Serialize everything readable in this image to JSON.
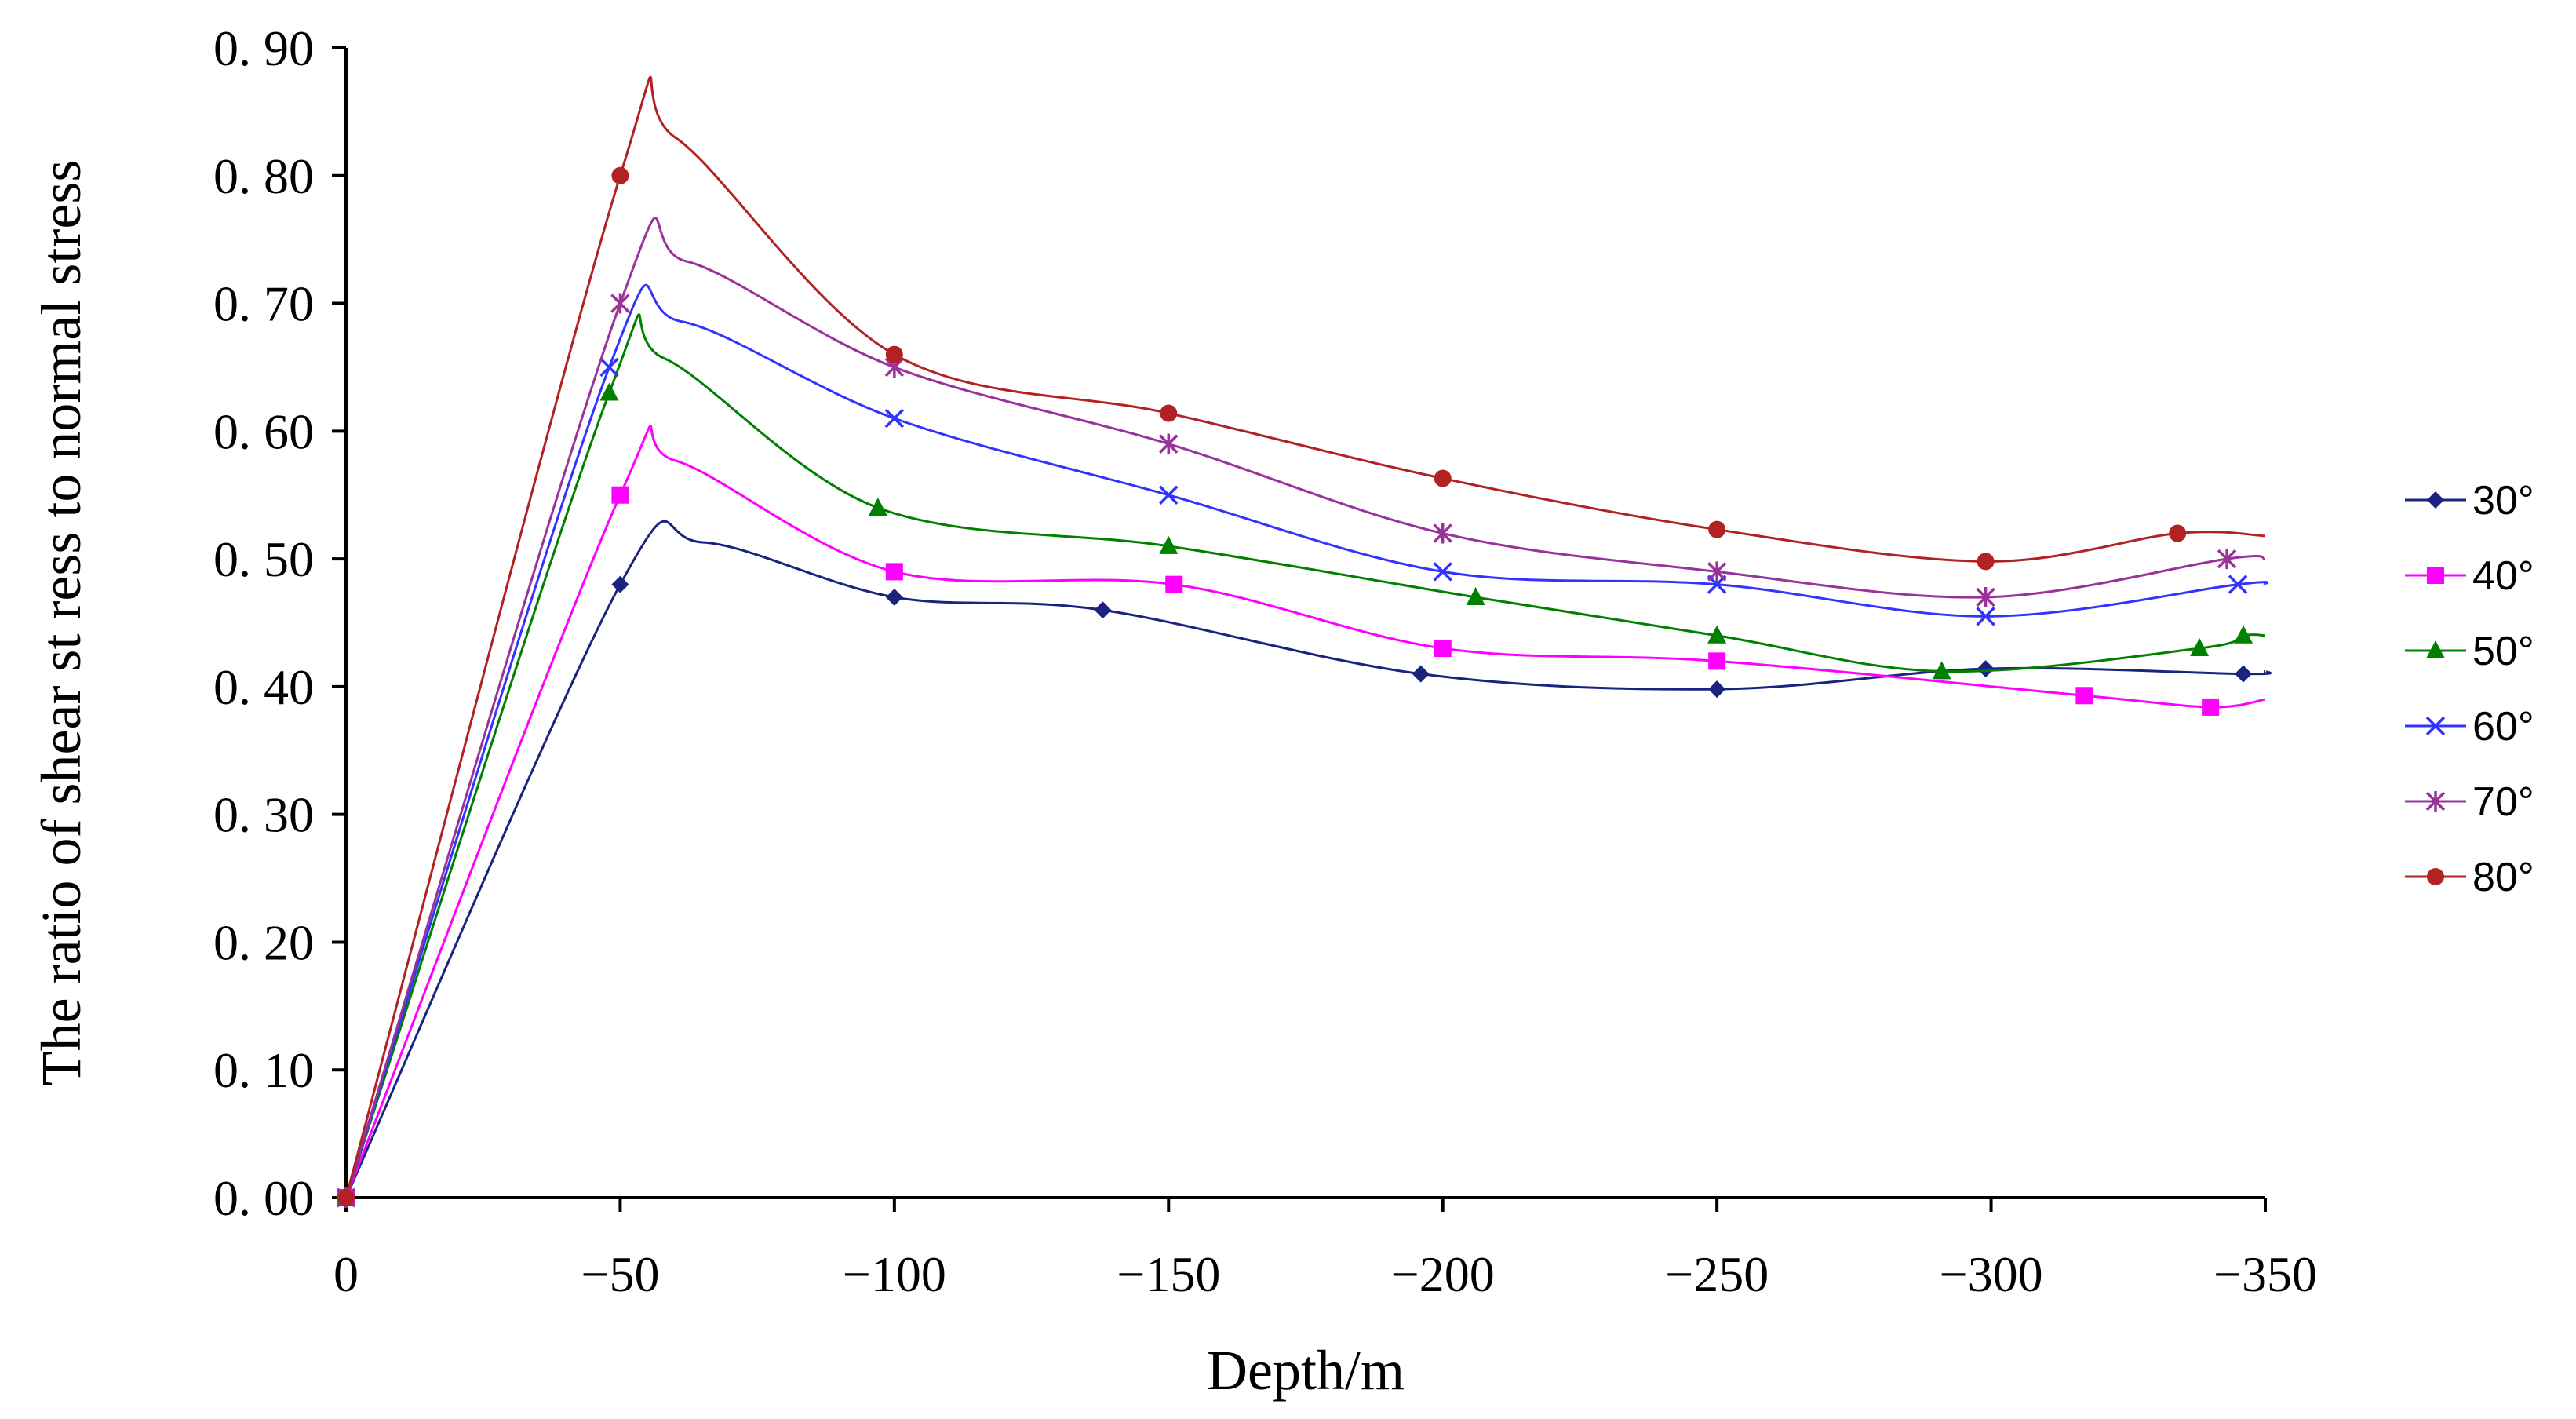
{
  "chart_data": {
    "type": "line",
    "title": "",
    "xlabel": "Depth/m",
    "ylabel": "The ratio of shear st ress to normal stress",
    "xlim": [
      0,
      -350
    ],
    "ylim": [
      0,
      0.9
    ],
    "x_ticks": [
      0,
      -50,
      -100,
      -150,
      -200,
      -250,
      -300,
      -350
    ],
    "x_tick_labels": [
      "0",
      "−50",
      "−100",
      "−150",
      "−200",
      "−250",
      "−300",
      "−350"
    ],
    "y_ticks": [
      0,
      0.1,
      0.2,
      0.3,
      0.4,
      0.5,
      0.6,
      0.7,
      0.8,
      0.9
    ],
    "y_tick_labels": [
      "0. 00",
      "0. 10",
      "0. 20",
      "0. 30",
      "0. 40",
      "0. 50",
      "0. 60",
      "0. 70",
      "0. 80",
      "0. 90"
    ],
    "grid": false,
    "legend_position": "right",
    "series": [
      {
        "name": "30°",
        "color": "#1a237e",
        "marker": "diamond",
        "x": [
          0,
          -50,
          -100,
          -138,
          -196,
          -250,
          -299,
          -346
        ],
        "y": [
          0,
          0.48,
          0.47,
          0.46,
          0.41,
          0.398,
          0.414,
          0.41
        ],
        "curve": [
          [
            0,
            0
          ],
          [
            -50,
            0.48
          ],
          [
            -65,
            0.513
          ],
          [
            -100,
            0.47
          ],
          [
            -138,
            0.46
          ],
          [
            -196,
            0.41
          ],
          [
            -250,
            0.398
          ],
          [
            -299,
            0.414
          ],
          [
            -346,
            0.41
          ],
          [
            -350,
            0.412
          ]
        ]
      },
      {
        "name": "40°",
        "color": "#ff00ff",
        "marker": "square",
        "x": [
          0,
          -50,
          -100,
          -151,
          -200,
          -250,
          -317,
          -340
        ],
        "y": [
          0,
          0.55,
          0.49,
          0.48,
          0.43,
          0.42,
          0.393,
          0.384
        ],
        "curve": [
          [
            0,
            0
          ],
          [
            -50,
            0.55
          ],
          [
            -60,
            0.577
          ],
          [
            -100,
            0.49
          ],
          [
            -151,
            0.48
          ],
          [
            -200,
            0.43
          ],
          [
            -250,
            0.42
          ],
          [
            -317,
            0.393
          ],
          [
            -340,
            0.384
          ],
          [
            -350,
            0.39
          ]
        ]
      },
      {
        "name": "50°",
        "color": "#008000",
        "marker": "triangle",
        "x": [
          0,
          -48,
          -97,
          -150,
          -206,
          -250,
          -291,
          -338,
          -346
        ],
        "y": [
          0,
          0.63,
          0.54,
          0.51,
          0.47,
          0.44,
          0.412,
          0.43,
          0.44
        ],
        "curve": [
          [
            0,
            0
          ],
          [
            -48,
            0.63
          ],
          [
            -58,
            0.657
          ],
          [
            -97,
            0.54
          ],
          [
            -150,
            0.51
          ],
          [
            -206,
            0.47
          ],
          [
            -250,
            0.44
          ],
          [
            -291,
            0.412
          ],
          [
            -338,
            0.43
          ],
          [
            -346,
            0.44
          ],
          [
            -350,
            0.44
          ]
        ]
      },
      {
        "name": "60°",
        "color": "#3333ff",
        "marker": "x",
        "x": [
          0,
          -48,
          -100,
          -150,
          -200,
          -250,
          -299,
          -345
        ],
        "y": [
          0,
          0.65,
          0.61,
          0.55,
          0.49,
          0.48,
          0.455,
          0.48
        ],
        "curve": [
          [
            0,
            0
          ],
          [
            -48,
            0.65
          ],
          [
            -61,
            0.686
          ],
          [
            -100,
            0.61
          ],
          [
            -150,
            0.55
          ],
          [
            -200,
            0.49
          ],
          [
            -250,
            0.48
          ],
          [
            -299,
            0.455
          ],
          [
            -345,
            0.48
          ],
          [
            -350,
            0.48
          ]
        ]
      },
      {
        "name": "70°",
        "color": "#993399",
        "marker": "star",
        "x": [
          0,
          -50,
          -100,
          -150,
          -200,
          -250,
          -299,
          -343
        ],
        "y": [
          0,
          0.7,
          0.65,
          0.59,
          0.52,
          0.49,
          0.47,
          0.5
        ],
        "curve": [
          [
            0,
            0
          ],
          [
            -50,
            0.7
          ],
          [
            -62,
            0.733
          ],
          [
            -100,
            0.65
          ],
          [
            -150,
            0.59
          ],
          [
            -200,
            0.52
          ],
          [
            -250,
            0.49
          ],
          [
            -299,
            0.47
          ],
          [
            -343,
            0.5
          ],
          [
            -350,
            0.5
          ]
        ]
      },
      {
        "name": "80°",
        "color": "#b22222",
        "marker": "circle",
        "x": [
          0,
          -50,
          -100,
          -150,
          -200,
          -250,
          -299,
          -334
        ],
        "y": [
          0,
          0.8,
          0.66,
          0.614,
          0.563,
          0.523,
          0.498,
          0.52
        ],
        "curve": [
          [
            0,
            0
          ],
          [
            -50,
            0.8
          ],
          [
            -60,
            0.83
          ],
          [
            -100,
            0.66
          ],
          [
            -150,
            0.614
          ],
          [
            -200,
            0.563
          ],
          [
            -250,
            0.523
          ],
          [
            -299,
            0.498
          ],
          [
            -334,
            0.52
          ],
          [
            -350,
            0.518
          ]
        ]
      }
    ]
  }
}
